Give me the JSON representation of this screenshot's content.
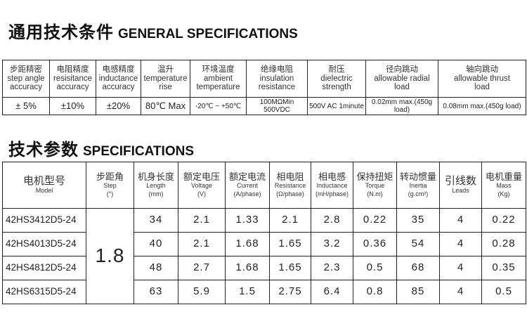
{
  "general": {
    "title_cn": "通用技术条件",
    "title_en": "GENERAL SPECIFICATIONS",
    "headers": [
      [
        "步距精密",
        "step angle",
        "accuracy"
      ],
      [
        "电阻精度",
        "resisitance",
        "accuracy"
      ],
      [
        "电感精度",
        "inductance",
        "accuracy"
      ],
      [
        "温升",
        "temperature",
        "rise"
      ],
      [
        "环境温度",
        "ambient",
        "temperature"
      ],
      [
        "绝缘电阻",
        "insulation",
        "resistance"
      ],
      [
        "耐压",
        "dielectric",
        "strength"
      ],
      [
        "径向跳动",
        "allowable radial",
        "load"
      ],
      [
        "轴向跳动",
        "allowable thrust",
        "load"
      ]
    ],
    "values": [
      "± 5%",
      "±10%",
      "±20%",
      "80℃ Max",
      "-20℃ ~ +50℃",
      "100MΩMin 500VDC",
      "500V AC 1minute",
      "0.02mm max.(450g load)",
      "0.08mm max.(450g load)"
    ]
  },
  "specs": {
    "title_cn": "技术参数",
    "title_en": "SPECIFICATIONS",
    "headers": [
      [
        "电机型号",
        "Model",
        ""
      ],
      [
        "步距角",
        "Step",
        "(°)"
      ],
      [
        "机身长度",
        "Length",
        "(mm)"
      ],
      [
        "额定电压",
        "Voltage",
        "(V)"
      ],
      [
        "额定电流",
        "Current",
        "(A/phase)"
      ],
      [
        "相电阻",
        "Resistance",
        "(Ω/phase)"
      ],
      [
        "相电感",
        "Inductance",
        "(mH/phase)"
      ],
      [
        "保持扭矩",
        "Torque",
        "(N.m)"
      ],
      [
        "转动惯量",
        "Inertia",
        "(g.cm²)"
      ],
      [
        "引线数",
        "Leads",
        ""
      ],
      [
        "电机重量",
        "Mass",
        "(Kg)"
      ]
    ],
    "step": "1.8",
    "rows": [
      [
        "42HS3412D5-24",
        "34",
        "2.1",
        "1.33",
        "2.1",
        "2.8",
        "0.22",
        "35",
        "4",
        "0.22"
      ],
      [
        "42HS4013D5-24",
        "40",
        "2.1",
        "1.68",
        "1.65",
        "3.2",
        "0.36",
        "54",
        "4",
        "0.28"
      ],
      [
        "42HS4812D5-24",
        "48",
        "2.7",
        "1.68",
        "1.65",
        "2.3",
        "0.5",
        "68",
        "4",
        "0.35"
      ],
      [
        "42HS6315D5-24",
        "63",
        "5.9",
        "1.5",
        "2.75",
        "6.4",
        "0.8",
        "85",
        "4",
        "0.5"
      ]
    ]
  }
}
